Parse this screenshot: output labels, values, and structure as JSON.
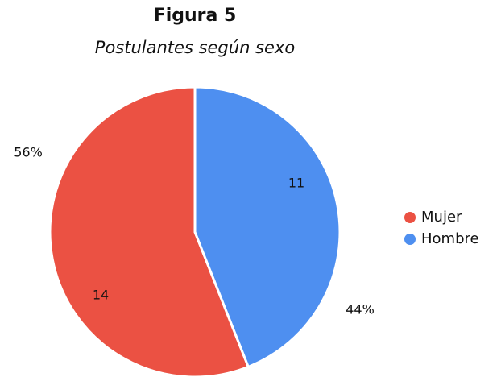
{
  "chart_data": {
    "type": "pie",
    "title": "Figura 5",
    "subtitle": "Postulantes según sexo",
    "categories": [
      "Mujer",
      "Hombre"
    ],
    "values": [
      14,
      11
    ],
    "colors": [
      "#eb5143",
      "#4e8ff0"
    ],
    "percentages": [
      56,
      44
    ],
    "percentage_labels": [
      "56%",
      "44%"
    ],
    "legend": "right"
  }
}
